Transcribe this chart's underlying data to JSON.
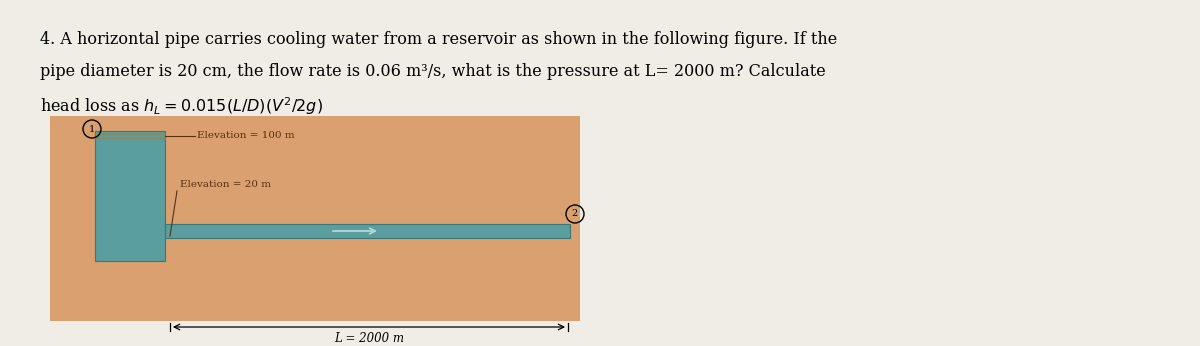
{
  "bg_color": "#daa070",
  "reservoir_color": "#5a9ea0",
  "pipe_color": "#5a9ea0",
  "text_color": "#5a3010",
  "fig_bg": "#f0ece6",
  "elev_100_label": "Elevation = 100 m",
  "elev_20_label": "Elevation = 20 m",
  "length_label": "L = 2000 m",
  "node1_label": "1",
  "node2_label": "2",
  "line1": "4. A horizontal pipe carries cooling water from a reservoir as shown in the following figure. If the",
  "line2": "pipe diameter is 20 cm, the flow rate is 0.06 m³/s, what is the pressure at L= 2000 m? Calculate",
  "line3": "head loss as $h_L = 0.015(L/D)(V^2/2g)$"
}
